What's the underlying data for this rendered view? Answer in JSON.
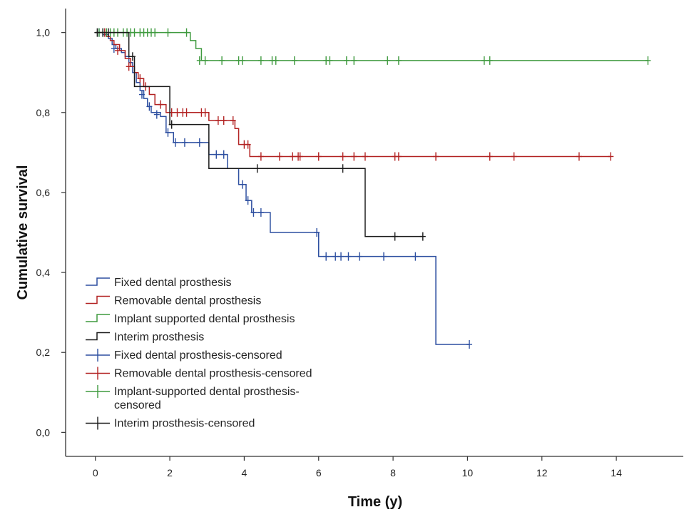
{
  "chart_data": {
    "type": "line",
    "subtype": "kaplan-meier survival curves",
    "xlabel": "Time (y)",
    "ylabel": "Cumulative survival",
    "xlim": [
      -0.8,
      15.8
    ],
    "ylim": [
      -0.06,
      1.06
    ],
    "xticks": [
      0,
      2,
      4,
      6,
      8,
      10,
      12,
      14
    ],
    "xtick_labels": [
      "0",
      "2",
      "4",
      "6",
      "8",
      "10",
      "12",
      "14"
    ],
    "yticks": [
      0.0,
      0.2,
      0.4,
      0.6,
      0.8,
      1.0
    ],
    "ytick_labels": [
      "0,0",
      "0,2",
      "0,4",
      "0,6",
      "0,8",
      "1,0"
    ],
    "grid": false,
    "legend_position": "bottom-left",
    "series": [
      {
        "name": "Fixed dental prosthesis",
        "color": "#2d4fa0",
        "steps": [
          [
            0,
            1.0
          ],
          [
            0.2,
            0.995
          ],
          [
            0.35,
            0.985
          ],
          [
            0.45,
            0.97
          ],
          [
            0.55,
            0.96
          ],
          [
            0.7,
            0.95
          ],
          [
            0.8,
            0.94
          ],
          [
            0.9,
            0.925
          ],
          [
            1.0,
            0.9
          ],
          [
            1.1,
            0.875
          ],
          [
            1.2,
            0.855
          ],
          [
            1.3,
            0.835
          ],
          [
            1.4,
            0.815
          ],
          [
            1.5,
            0.8
          ],
          [
            1.75,
            0.79
          ],
          [
            1.9,
            0.75
          ],
          [
            2.1,
            0.725
          ],
          [
            2.55,
            0.725
          ],
          [
            3.05,
            0.695
          ],
          [
            3.55,
            0.66
          ],
          [
            3.85,
            0.62
          ],
          [
            4.05,
            0.58
          ],
          [
            4.2,
            0.55
          ],
          [
            4.7,
            0.5
          ],
          [
            6.0,
            0.44
          ],
          [
            9.15,
            0.22
          ]
        ],
        "end_x": 10.05,
        "censored": [
          [
            0.1,
            1.0
          ],
          [
            0.5,
            0.96
          ],
          [
            1.25,
            0.845
          ],
          [
            1.45,
            0.815
          ],
          [
            1.65,
            0.795
          ],
          [
            1.95,
            0.75
          ],
          [
            2.15,
            0.725
          ],
          [
            2.4,
            0.725
          ],
          [
            2.8,
            0.725
          ],
          [
            3.25,
            0.695
          ],
          [
            3.45,
            0.695
          ],
          [
            3.95,
            0.62
          ],
          [
            4.1,
            0.58
          ],
          [
            4.25,
            0.55
          ],
          [
            4.45,
            0.55
          ],
          [
            5.95,
            0.5
          ],
          [
            6.2,
            0.44
          ],
          [
            6.45,
            0.44
          ],
          [
            6.6,
            0.44
          ],
          [
            6.8,
            0.44
          ],
          [
            7.1,
            0.44
          ],
          [
            7.75,
            0.44
          ],
          [
            8.6,
            0.44
          ],
          [
            10.05,
            0.22
          ]
        ]
      },
      {
        "name": "Removable dental prosthesis",
        "color": "#b22222",
        "steps": [
          [
            0,
            1.0
          ],
          [
            0.3,
            0.99
          ],
          [
            0.4,
            0.98
          ],
          [
            0.5,
            0.97
          ],
          [
            0.65,
            0.955
          ],
          [
            0.8,
            0.935
          ],
          [
            0.95,
            0.915
          ],
          [
            1.05,
            0.9
          ],
          [
            1.15,
            0.885
          ],
          [
            1.3,
            0.865
          ],
          [
            1.45,
            0.845
          ],
          [
            1.6,
            0.82
          ],
          [
            1.9,
            0.8
          ],
          [
            2.7,
            0.8
          ],
          [
            3.05,
            0.78
          ],
          [
            3.75,
            0.76
          ],
          [
            3.85,
            0.72
          ],
          [
            4.15,
            0.69
          ]
        ],
        "end_x": 13.85,
        "censored": [
          [
            0.25,
            1.0
          ],
          [
            0.6,
            0.955
          ],
          [
            0.9,
            0.915
          ],
          [
            1.2,
            0.885
          ],
          [
            1.35,
            0.865
          ],
          [
            1.75,
            0.82
          ],
          [
            2.05,
            0.8
          ],
          [
            2.2,
            0.8
          ],
          [
            2.35,
            0.8
          ],
          [
            2.45,
            0.8
          ],
          [
            2.85,
            0.8
          ],
          [
            2.95,
            0.8
          ],
          [
            3.3,
            0.78
          ],
          [
            3.45,
            0.78
          ],
          [
            3.7,
            0.78
          ],
          [
            4.0,
            0.72
          ],
          [
            4.1,
            0.72
          ],
          [
            4.45,
            0.69
          ],
          [
            4.95,
            0.69
          ],
          [
            5.3,
            0.69
          ],
          [
            5.45,
            0.69
          ],
          [
            5.5,
            0.69
          ],
          [
            6.0,
            0.69
          ],
          [
            6.65,
            0.69
          ],
          [
            6.95,
            0.69
          ],
          [
            7.25,
            0.69
          ],
          [
            8.05,
            0.69
          ],
          [
            8.15,
            0.69
          ],
          [
            9.15,
            0.69
          ],
          [
            10.6,
            0.69
          ],
          [
            11.25,
            0.69
          ],
          [
            13.0,
            0.69
          ],
          [
            13.85,
            0.69
          ]
        ]
      },
      {
        "name": "Implant supported dental prosthesis",
        "color": "#3f9a3f",
        "steps": [
          [
            0,
            1.0
          ],
          [
            2.55,
            0.98
          ],
          [
            2.7,
            0.96
          ],
          [
            2.85,
            0.93
          ]
        ],
        "end_x": 14.85,
        "censored": [
          [
            0.1,
            1.0
          ],
          [
            0.2,
            1.0
          ],
          [
            0.3,
            1.0
          ],
          [
            0.4,
            1.0
          ],
          [
            0.5,
            1.0
          ],
          [
            0.6,
            1.0
          ],
          [
            0.75,
            1.0
          ],
          [
            0.85,
            1.0
          ],
          [
            0.95,
            1.0
          ],
          [
            1.05,
            1.0
          ],
          [
            1.2,
            1.0
          ],
          [
            1.3,
            1.0
          ],
          [
            1.4,
            1.0
          ],
          [
            1.5,
            1.0
          ],
          [
            1.6,
            1.0
          ],
          [
            1.95,
            1.0
          ],
          [
            2.45,
            1.0
          ],
          [
            2.8,
            0.93
          ],
          [
            2.95,
            0.93
          ],
          [
            3.4,
            0.93
          ],
          [
            3.85,
            0.93
          ],
          [
            3.95,
            0.93
          ],
          [
            4.45,
            0.93
          ],
          [
            4.75,
            0.93
          ],
          [
            4.85,
            0.93
          ],
          [
            5.35,
            0.93
          ],
          [
            6.2,
            0.93
          ],
          [
            6.3,
            0.93
          ],
          [
            6.75,
            0.93
          ],
          [
            6.95,
            0.93
          ],
          [
            7.85,
            0.93
          ],
          [
            8.15,
            0.93
          ],
          [
            10.45,
            0.93
          ],
          [
            10.6,
            0.93
          ],
          [
            14.85,
            0.93
          ]
        ]
      },
      {
        "name": "Interim prosthesis",
        "color": "#1a1a1a",
        "steps": [
          [
            0,
            1.0
          ],
          [
            0.9,
            0.94
          ],
          [
            1.05,
            0.865
          ],
          [
            2.0,
            0.77
          ],
          [
            3.05,
            0.66
          ],
          [
            7.25,
            0.49
          ]
        ],
        "end_x": 8.8,
        "censored": [
          [
            0.05,
            1.0
          ],
          [
            0.2,
            1.0
          ],
          [
            0.35,
            1.0
          ],
          [
            1.0,
            0.94
          ],
          [
            2.05,
            0.77
          ],
          [
            4.35,
            0.66
          ],
          [
            6.65,
            0.66
          ],
          [
            8.05,
            0.49
          ],
          [
            8.8,
            0.49
          ]
        ]
      }
    ],
    "legend": [
      {
        "label": "Fixed dental prosthesis",
        "color": "#2d4fa0",
        "symbol": "step"
      },
      {
        "label": "Removable dental prosthesis",
        "color": "#b22222",
        "symbol": "step"
      },
      {
        "label": "Implant supported dental prosthesis",
        "color": "#3f9a3f",
        "symbol": "step"
      },
      {
        "label": "Interim prosthesis",
        "color": "#1a1a1a",
        "symbol": "step"
      },
      {
        "label": "Fixed dental prosthesis-censored",
        "color": "#2d4fa0",
        "symbol": "cross"
      },
      {
        "label": "Removable dental prosthesis-censored",
        "color": "#b22222",
        "symbol": "cross"
      },
      {
        "label": "Implant-supported dental prosthesis-\ncensored",
        "color": "#3f9a3f",
        "symbol": "cross"
      },
      {
        "label": "Interim prosthesis-censored",
        "color": "#1a1a1a",
        "symbol": "cross"
      }
    ]
  }
}
